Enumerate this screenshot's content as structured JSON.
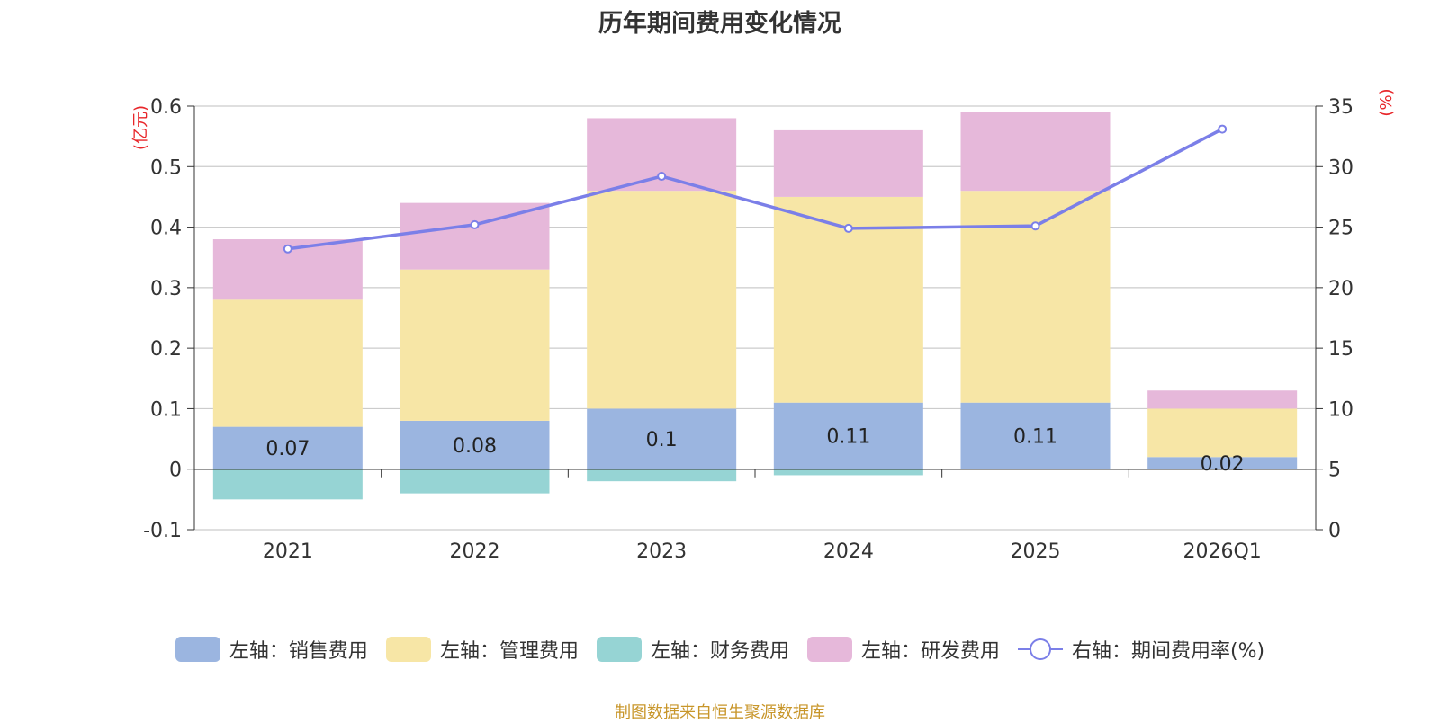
{
  "chart_data": {
    "type": "bar",
    "title": "历年期间费用变化情况",
    "categories": [
      "2021",
      "2022",
      "2023",
      "2024",
      "2025",
      "2026Q1"
    ],
    "left_axis": {
      "unit_label": "(亿元)",
      "ylim": [
        -0.1,
        0.6
      ],
      "ticks": [
        -0.1,
        0,
        0.1,
        0.2,
        0.3,
        0.4,
        0.5,
        0.6
      ]
    },
    "right_axis": {
      "unit_label": "(%)",
      "ylim": [
        0,
        35
      ],
      "ticks": [
        0,
        5,
        10,
        15,
        20,
        25,
        30,
        35
      ]
    },
    "series": [
      {
        "name": "左轴：销售费用",
        "type": "bar",
        "color": "#9bb5e0",
        "values": [
          0.07,
          0.08,
          0.1,
          0.11,
          0.11,
          0.02
        ],
        "labels": [
          "0.07",
          "0.08",
          "0.1",
          "0.11",
          "0.11",
          "0.02"
        ]
      },
      {
        "name": "左轴：管理费用",
        "type": "bar",
        "color": "#f7e6a6",
        "values": [
          0.21,
          0.25,
          0.36,
          0.34,
          0.35,
          0.08
        ]
      },
      {
        "name": "左轴：财务费用",
        "type": "bar",
        "color": "#96d4d4",
        "values": [
          -0.05,
          -0.04,
          -0.02,
          -0.01,
          0.0,
          0.0
        ]
      },
      {
        "name": "左轴：研发费用",
        "type": "bar",
        "color": "#e6b8da",
        "values": [
          0.1,
          0.11,
          0.12,
          0.11,
          0.13,
          0.03
        ]
      },
      {
        "name": "右轴：期间费用率(%)",
        "type": "line",
        "color": "#7b7fe8",
        "values": [
          23.2,
          25.2,
          29.2,
          24.9,
          25.1,
          33.1
        ]
      }
    ],
    "grid": true,
    "legend_position": "bottom"
  },
  "source_note": "制图数据来自恒生聚源数据库"
}
